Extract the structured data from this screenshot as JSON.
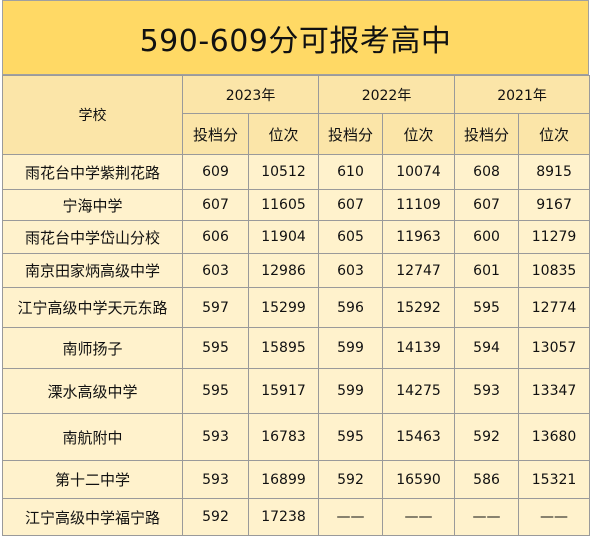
{
  "title": "590-609分可报考高中",
  "header": {
    "school_label": "学校",
    "years": [
      "2023年",
      "2022年",
      "2021年"
    ],
    "score_label": "投档分",
    "rank_label": "位次"
  },
  "rows": [
    {
      "school": "雨花台中学紫荆花路",
      "v": [
        "609",
        "10512",
        "610",
        "10074",
        "608",
        "8915"
      ]
    },
    {
      "school": "宁海中学",
      "v": [
        "607",
        "11605",
        "607",
        "11109",
        "607",
        "9167"
      ]
    },
    {
      "school": "雨花台中学岱山分校",
      "v": [
        "606",
        "11904",
        "605",
        "11963",
        "600",
        "11279"
      ]
    },
    {
      "school": "南京田家炳高级中学",
      "v": [
        "603",
        "12986",
        "603",
        "12747",
        "601",
        "10835"
      ]
    },
    {
      "school": "江宁高级中学天元东路",
      "v": [
        "597",
        "15299",
        "596",
        "15292",
        "595",
        "12774"
      ]
    },
    {
      "school": "南师扬子",
      "v": [
        "595",
        "15895",
        "599",
        "14139",
        "594",
        "13057"
      ]
    },
    {
      "school": "溧水高级中学",
      "v": [
        "595",
        "15917",
        "599",
        "14275",
        "593",
        "13347"
      ]
    },
    {
      "school": "南航附中",
      "v": [
        "593",
        "16783",
        "595",
        "15463",
        "592",
        "13680"
      ]
    },
    {
      "school": "第十二中学",
      "v": [
        "593",
        "16899",
        "592",
        "16590",
        "586",
        "15321"
      ]
    },
    {
      "school": "江宁高级中学福宁路",
      "v": [
        "592",
        "17238",
        "——",
        "——",
        "——",
        "——"
      ]
    }
  ]
}
